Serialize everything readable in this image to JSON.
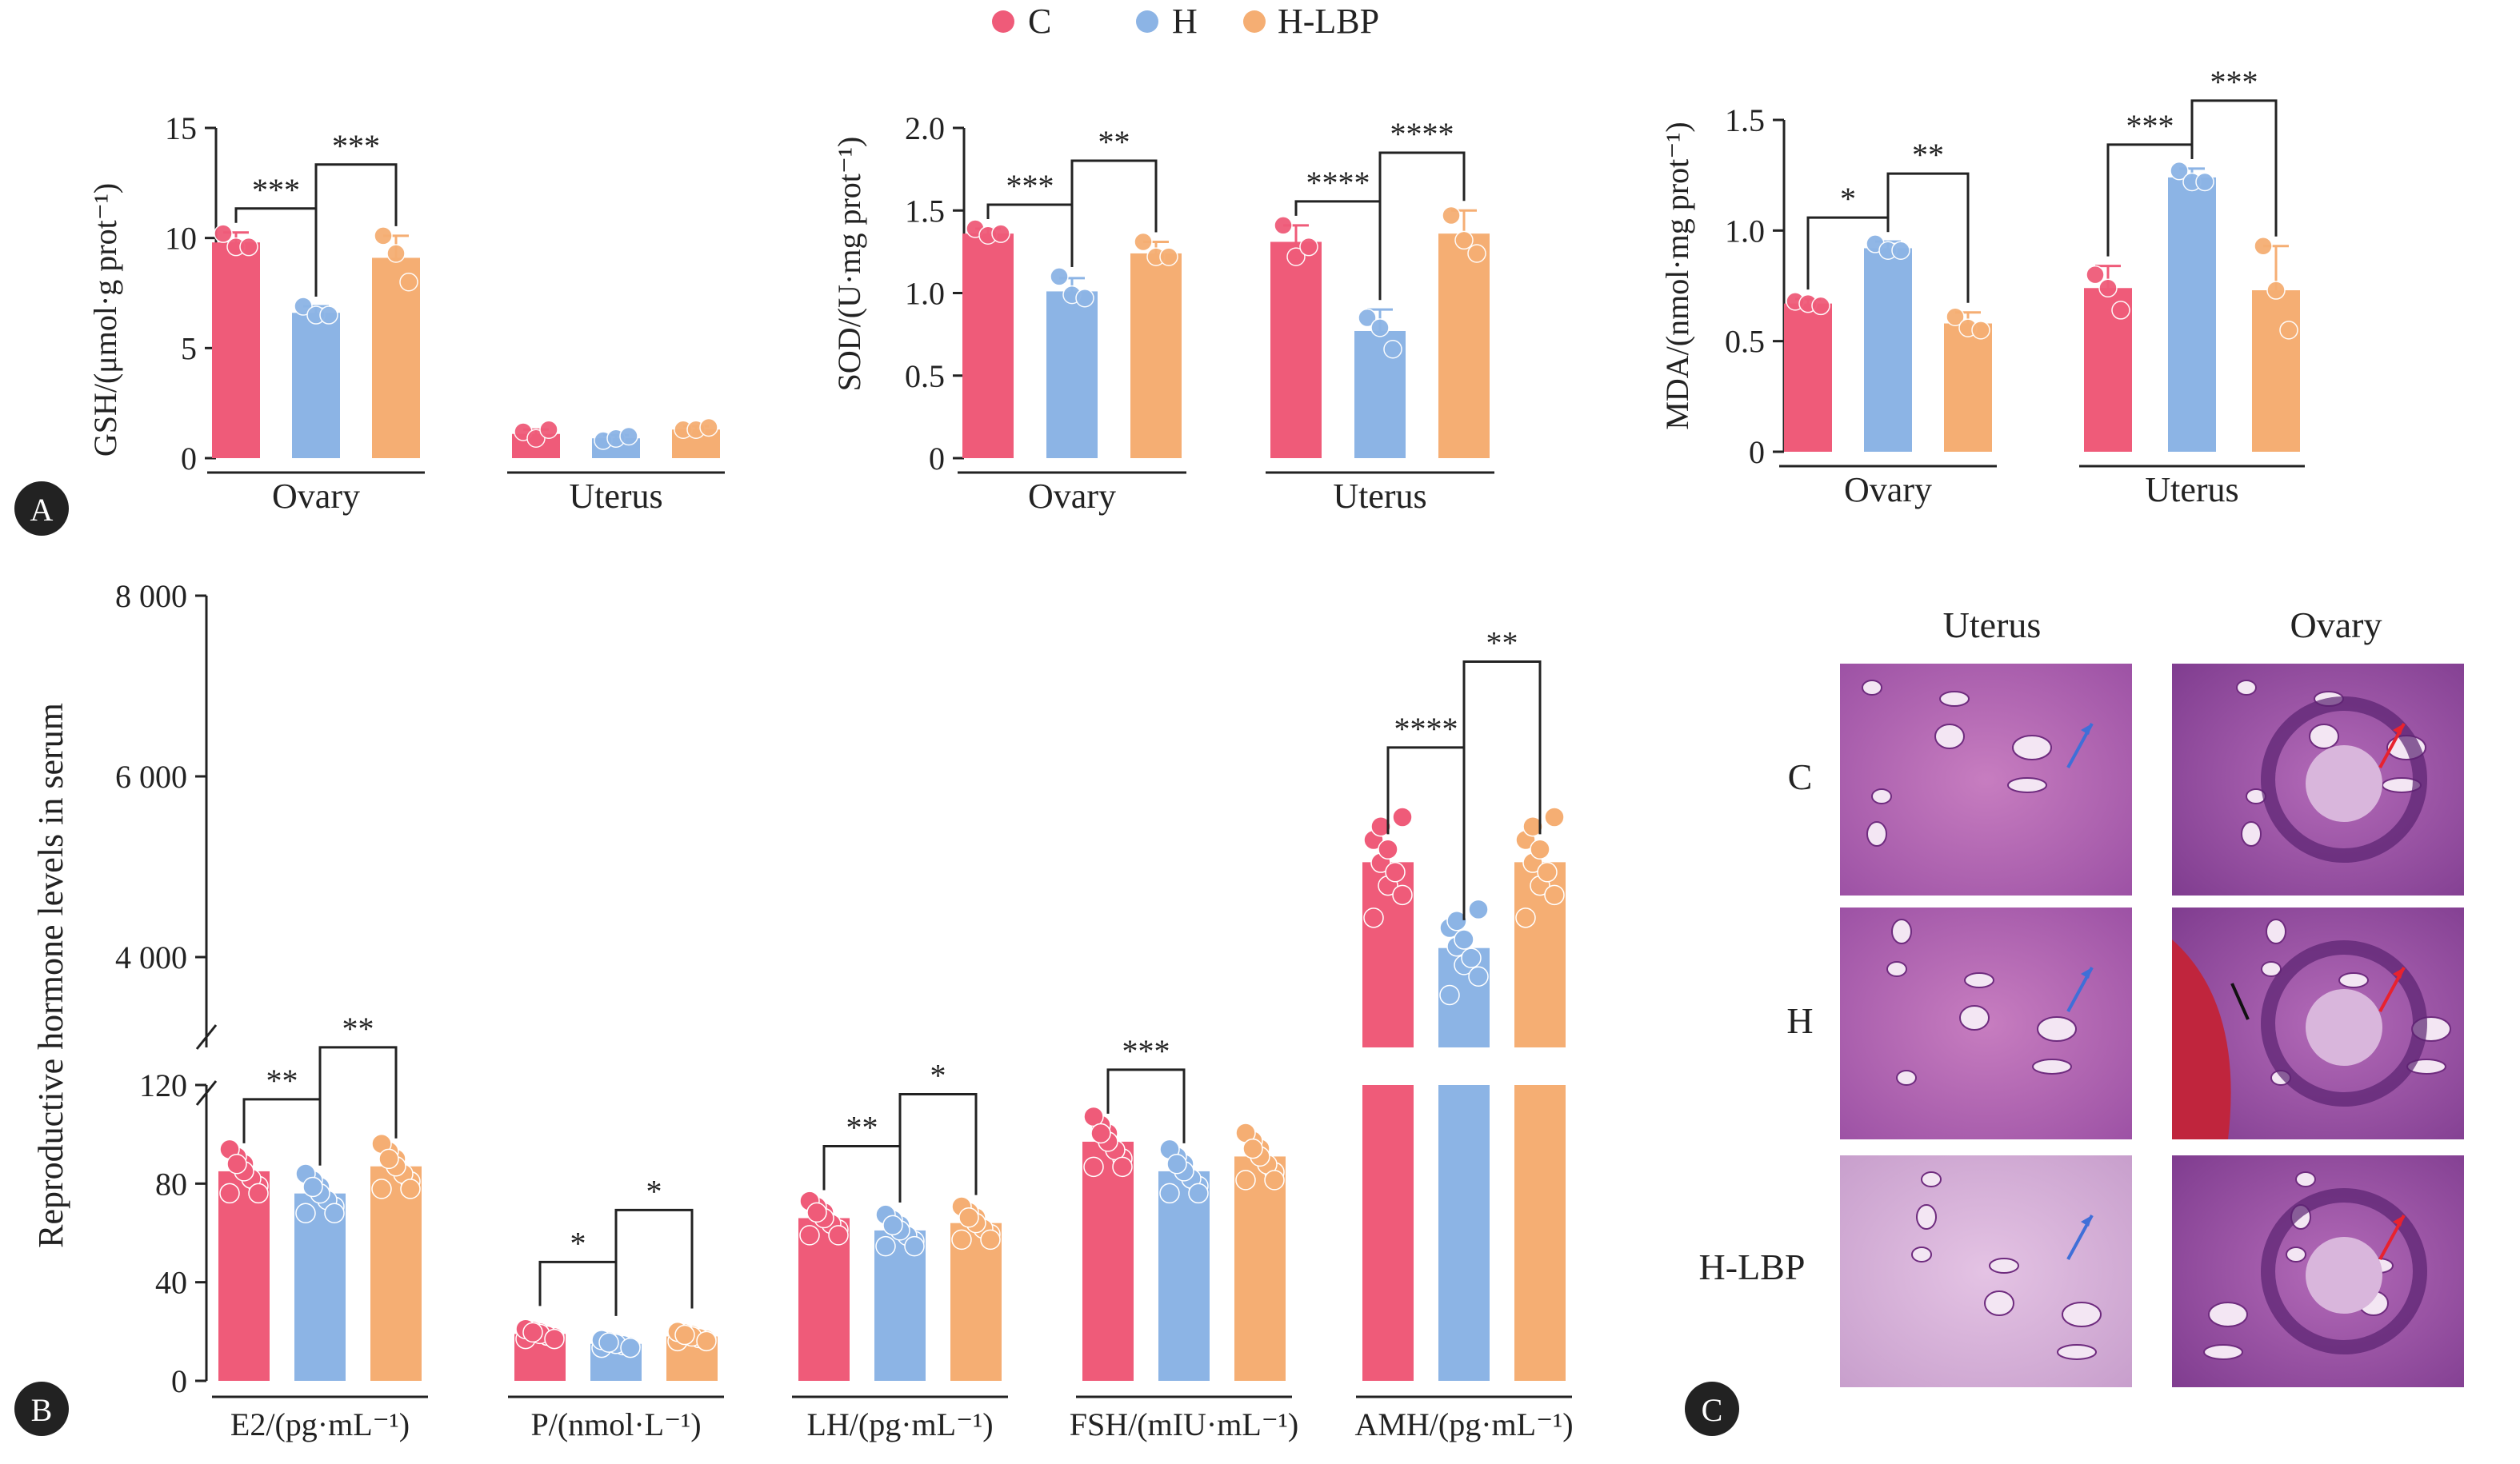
{
  "colors": {
    "C": "#EF5B79",
    "H": "#8CB4E5",
    "H-LBP": "#F5AE73",
    "axis": "#222222",
    "bracket": "#222222"
  },
  "legend": [
    {
      "key": "C",
      "label": "C"
    },
    {
      "key": "H",
      "label": "H"
    },
    {
      "key": "H-LBP",
      "label": "H-LBP"
    }
  ],
  "panel_labels": [
    "A",
    "B",
    "C"
  ],
  "chart_data": [
    {
      "id": "gsh",
      "type": "bar",
      "ylabel": "GSH/(μmol·g prot⁻¹)",
      "ylim": [
        0,
        15
      ],
      "yticks": [
        "0",
        "5",
        "10",
        "15"
      ],
      "categories": [
        "Ovary",
        "Uterus"
      ],
      "series": [
        {
          "name": "C",
          "values": [
            9.8,
            1.1
          ],
          "err": [
            0.45,
            0.2
          ],
          "points": [
            [
              10.2,
              9.6,
              9.6
            ],
            [
              1.2,
              0.9,
              1.3
            ]
          ]
        },
        {
          "name": "H",
          "values": [
            6.6,
            0.9
          ],
          "err": [
            0.3,
            0.15
          ],
          "points": [
            [
              6.9,
              6.5,
              6.5
            ],
            [
              0.8,
              0.9,
              1.0
            ]
          ]
        },
        {
          "name": "H-LBP",
          "values": [
            9.1,
            1.3
          ],
          "err": [
            1.0,
            0.15
          ],
          "points": [
            [
              10.1,
              9.3,
              8.0
            ],
            [
              1.3,
              1.3,
              1.4
            ]
          ]
        }
      ],
      "significance": [
        {
          "category": 0,
          "from": 0,
          "to": 1,
          "label": "***"
        },
        {
          "category": 0,
          "from": 1,
          "to": 2,
          "label": "***"
        }
      ]
    },
    {
      "id": "sod",
      "type": "bar",
      "ylabel": "SOD/(U·mg prot⁻¹)",
      "ylim": [
        0,
        2.0
      ],
      "yticks": [
        "0",
        "0.5",
        "1.0",
        "1.5",
        "2.0"
      ],
      "categories": [
        "Ovary",
        "Uterus"
      ],
      "series": [
        {
          "name": "C",
          "values": [
            1.36,
            1.31
          ],
          "err": [
            0.03,
            0.1
          ],
          "points": [
            [
              1.39,
              1.35,
              1.36
            ],
            [
              1.41,
              1.22,
              1.28
            ]
          ]
        },
        {
          "name": "H",
          "values": [
            1.01,
            0.77
          ],
          "err": [
            0.08,
            0.13
          ],
          "points": [
            [
              1.1,
              0.99,
              0.97
            ],
            [
              0.85,
              0.79,
              0.66
            ]
          ]
        },
        {
          "name": "H-LBP",
          "values": [
            1.24,
            1.36
          ],
          "err": [
            0.07,
            0.14
          ],
          "points": [
            [
              1.31,
              1.22,
              1.22
            ],
            [
              1.47,
              1.32,
              1.24
            ]
          ]
        }
      ],
      "significance": [
        {
          "category": 0,
          "from": 0,
          "to": 1,
          "label": "***"
        },
        {
          "category": 0,
          "from": 1,
          "to": 2,
          "label": "**"
        },
        {
          "category": 1,
          "from": 0,
          "to": 1,
          "label": "****"
        },
        {
          "category": 1,
          "from": 1,
          "to": 2,
          "label": "****"
        }
      ]
    },
    {
      "id": "mda",
      "type": "bar",
      "ylabel": "MDA/(nmol·mg prot⁻¹)",
      "ylim": [
        0,
        1.5
      ],
      "yticks": [
        "0",
        "0.5",
        "1.0",
        "1.5"
      ],
      "categories": [
        "Ovary",
        "Uterus"
      ],
      "series": [
        {
          "name": "C",
          "values": [
            0.67,
            0.74
          ],
          "err": [
            0.02,
            0.1
          ],
          "points": [
            [
              0.68,
              0.67,
              0.66
            ],
            [
              0.8,
              0.74,
              0.64
            ]
          ]
        },
        {
          "name": "H",
          "values": [
            0.92,
            1.24
          ],
          "err": [
            0.03,
            0.04
          ],
          "points": [
            [
              0.94,
              0.91,
              0.91
            ],
            [
              1.27,
              1.22,
              1.22
            ]
          ]
        },
        {
          "name": "H-LBP",
          "values": [
            0.58,
            0.73
          ],
          "err": [
            0.05,
            0.2
          ],
          "points": [
            [
              0.61,
              0.56,
              0.55
            ],
            [
              0.93,
              0.73,
              0.55
            ]
          ]
        }
      ],
      "significance": [
        {
          "category": 0,
          "from": 0,
          "to": 1,
          "label": "*"
        },
        {
          "category": 0,
          "from": 1,
          "to": 2,
          "label": "**"
        },
        {
          "category": 1,
          "from": 0,
          "to": 1,
          "label": "***"
        },
        {
          "category": 1,
          "from": 1,
          "to": 2,
          "label": "***"
        }
      ]
    },
    {
      "id": "hormones",
      "type": "bar",
      "ylabel": "Reproductive hormone levels in serum",
      "broken_axis": {
        "lower_range": [
          0,
          120
        ],
        "upper_range": [
          3000,
          8000
        ]
      },
      "yticks_lower": [
        "0",
        "40",
        "80",
        "120"
      ],
      "yticks_upper": [
        "4 000",
        "6 000",
        "8 000"
      ],
      "categories": [
        "E2/(pg·mL⁻¹)",
        "P/(nmol·L⁻¹)",
        "LH/(pg·mL⁻¹)",
        "FSH/(mIU·mL⁻¹)",
        "AMH/(pg·mL⁻¹)"
      ],
      "series": [
        {
          "name": "C",
          "values": [
            85,
            19,
            66,
            97,
            5050
          ]
        },
        {
          "name": "H",
          "values": [
            76,
            15,
            61,
            85,
            4100
          ]
        },
        {
          "name": "H-LBP",
          "values": [
            87,
            18,
            64,
            91,
            5050
          ]
        }
      ],
      "significance": [
        {
          "category": 0,
          "from": 0,
          "to": 1,
          "label": "**"
        },
        {
          "category": 0,
          "from": 1,
          "to": 2,
          "label": "**"
        },
        {
          "category": 1,
          "from": 0,
          "to": 1,
          "label": "*"
        },
        {
          "category": 1,
          "from": 1,
          "to": 2,
          "label": "*"
        },
        {
          "category": 2,
          "from": 0,
          "to": 1,
          "label": "**"
        },
        {
          "category": 2,
          "from": 1,
          "to": 2,
          "label": "*"
        },
        {
          "category": 3,
          "from": 0,
          "to": 1,
          "label": "***"
        },
        {
          "category": 4,
          "from": 0,
          "to": 1,
          "label": "****"
        },
        {
          "category": 4,
          "from": 1,
          "to": 2,
          "label": "**"
        }
      ]
    }
  ],
  "histology": {
    "columns": [
      "Uterus",
      "Ovary"
    ],
    "rows": [
      "C",
      "H",
      "H-LBP"
    ]
  }
}
